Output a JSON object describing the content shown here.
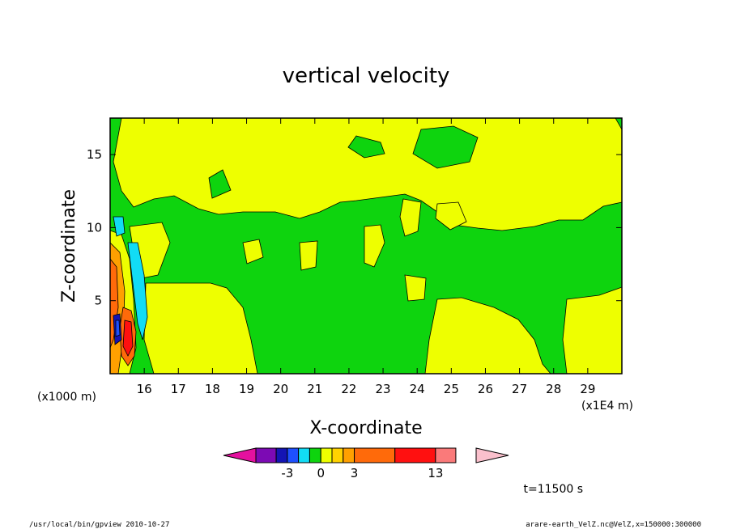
{
  "chart_data": {
    "type": "heatmap",
    "title": "vertical velocity",
    "xlabel": "X-coordinate",
    "ylabel": "Z-coordinate",
    "x_unit": "(x1E4 m)",
    "y_unit": "(x1000 m)",
    "x_ticks": [
      16,
      17,
      18,
      19,
      20,
      21,
      22,
      23,
      24,
      25,
      26,
      27,
      28,
      29
    ],
    "y_ticks": [
      5,
      10,
      15
    ],
    "xlim": [
      15,
      30
    ],
    "ylim": [
      0,
      17.5
    ],
    "time_label": "t=11500 s",
    "colorbar": {
      "tick_labels": [
        "-3",
        "0",
        "3",
        "13"
      ],
      "tick_values": [
        -3,
        0,
        3,
        13
      ],
      "colors": [
        "#e4119f",
        "#7c0ab4",
        "#1414b4",
        "#1e50ff",
        "#12dcf5",
        "#0ed40e",
        "#eeff00",
        "#ffd200",
        "#ffa000",
        "#ff6a0a",
        "#ff1010",
        "#fa7a7a",
        "#fac0cc"
      ],
      "edges": [
        -6,
        -5,
        -4,
        -3,
        -2,
        -1,
        0,
        1,
        2,
        3,
        7,
        13,
        16,
        19
      ]
    },
    "background_level_color": "#0ed40e",
    "positive_band_color": "#eeff00"
  },
  "footer": {
    "left": "/usr/local/bin/gpview  2010-10-27",
    "right": "arare-earth_VelZ.nc@VelZ,x=150000:300000"
  }
}
